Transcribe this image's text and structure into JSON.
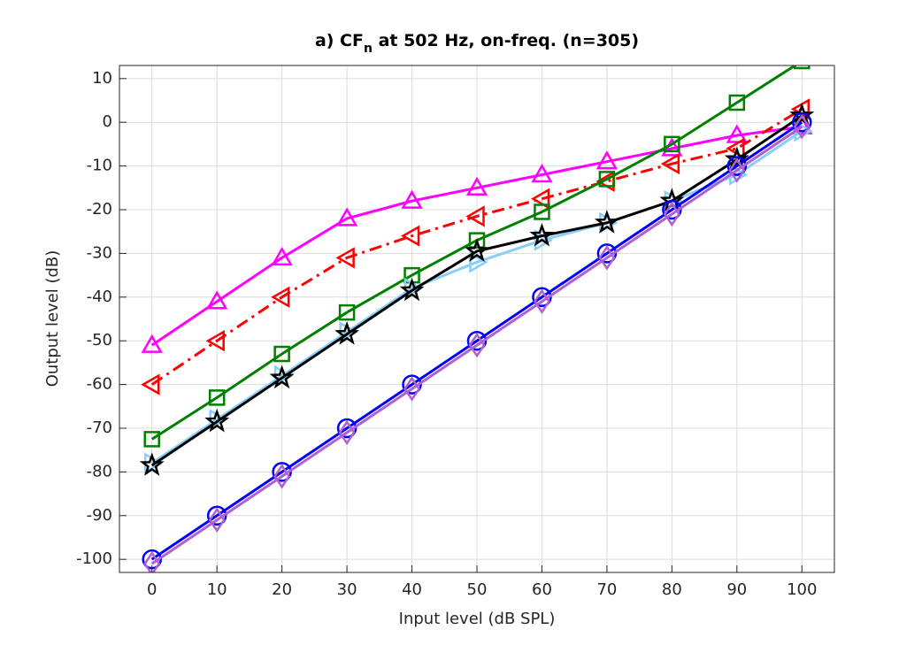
{
  "chart_data": {
    "type": "line",
    "title": [
      "a) CF",
      "n",
      " at 502 Hz, on-freq. (n=305)"
    ],
    "x_label": "Input level (dB SPL)",
    "y_label": "Output level (dB)",
    "x": [
      0,
      10,
      20,
      30,
      40,
      50,
      60,
      70,
      80,
      90,
      100
    ],
    "xlim": [
      -5,
      105
    ],
    "ylim": [
      -103,
      13
    ],
    "xticks": [
      0,
      10,
      20,
      30,
      40,
      50,
      60,
      70,
      80,
      90,
      100
    ],
    "yticks": [
      -100,
      -90,
      -80,
      -70,
      -60,
      -50,
      -40,
      -30,
      -20,
      -10,
      0,
      10
    ],
    "grid": true,
    "series": [
      {
        "color": "#ff00ff",
        "marker": "triangle-up",
        "dash": false,
        "values": [
          -51,
          -41,
          -31,
          -22,
          -18,
          -15,
          -12,
          -9,
          -6,
          -3,
          -1
        ]
      },
      {
        "color": "#ff0000",
        "marker": "triangle-left",
        "dash": true,
        "values": [
          -60,
          -50,
          -40,
          -31,
          -26,
          -21.5,
          -17.5,
          -13.5,
          -9.5,
          -6,
          3
        ]
      },
      {
        "color": "#008000",
        "marker": "square",
        "dash": false,
        "values": [
          -72.5,
          -63,
          -53,
          -43.5,
          -35,
          -27,
          -20.5,
          -13,
          -5,
          4.5,
          14
        ]
      },
      {
        "color": "#87cefa",
        "marker": "triangle-right",
        "dash": false,
        "values": [
          -78,
          -68,
          -58,
          -48,
          -38,
          -32,
          -27,
          -23,
          -18,
          -12,
          -2
        ]
      },
      {
        "color": "#000000",
        "marker": "star",
        "dash": false,
        "values": [
          -78.5,
          -68.5,
          -58.5,
          -48.5,
          -38.5,
          -29.5,
          -26,
          -23,
          -18,
          -8.5,
          1.5
        ]
      },
      {
        "color": "#0000ff",
        "marker": "circle",
        "dash": false,
        "values": [
          -100,
          -90,
          -80,
          -70,
          -60,
          -50,
          -40,
          -30,
          -20,
          -10,
          0
        ]
      },
      {
        "color": "#b060d0",
        "marker": "diamond",
        "dash": false,
        "values": [
          -101,
          -91,
          -81,
          -71,
          -61,
          -51,
          -41,
          -31,
          -21,
          -11,
          -1
        ]
      }
    ]
  }
}
